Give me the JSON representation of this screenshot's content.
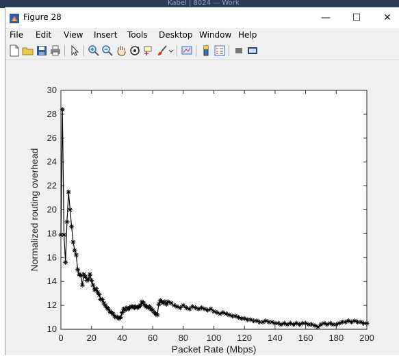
{
  "background": {
    "window_title": "Kabel | 8024 — Work"
  },
  "window": {
    "title": "Figure 28",
    "minimize": "—",
    "maximize": "☐",
    "close": "✕"
  },
  "menu": {
    "items": [
      "File",
      "Edit",
      "View",
      "Insert",
      "Tools",
      "Desktop",
      "Window",
      "Help"
    ]
  },
  "toolbar": {
    "icons": [
      "new-figure-icon",
      "open-file-icon",
      "save-icon",
      "print-icon",
      "select-arrow-icon",
      "zoom-in-icon",
      "zoom-out-icon",
      "pan-hand-icon",
      "rotate-3d-icon",
      "data-cursor-icon",
      "brush-icon",
      "link-plot-icon",
      "colorbar-icon",
      "legend-icon",
      "hide-plot-tools-icon",
      "show-plot-tools-icon"
    ]
  },
  "colors": {
    "line": "#000000",
    "axes_bg": "#ffffff",
    "figure_bg": "#f0f0f0"
  },
  "chart_data": {
    "type": "line",
    "title": "",
    "xlabel": "Packet Rate (Mbps)",
    "ylabel": "Normalized routing overhead",
    "xlim": [
      0,
      200
    ],
    "ylim": [
      10,
      30
    ],
    "xticks": [
      "0",
      "20",
      "40",
      "60",
      "80",
      "100",
      "120",
      "140",
      "160",
      "180",
      "200"
    ],
    "yticks": [
      "10",
      "12",
      "14",
      "16",
      "18",
      "20",
      "22",
      "24",
      "26",
      "28",
      "30"
    ],
    "marker": "*",
    "grid": false,
    "series": [
      {
        "x": [
          0,
          1,
          2,
          3,
          4,
          5,
          6,
          7,
          8,
          9,
          10,
          11,
          12,
          13,
          14,
          15,
          16,
          17,
          18,
          19,
          20,
          21,
          22,
          23,
          24,
          25,
          26,
          27,
          28,
          29,
          30,
          31,
          32,
          33,
          34,
          35,
          36,
          37,
          38,
          39,
          40,
          41,
          42,
          43,
          44,
          45,
          46,
          47,
          48,
          49,
          50,
          51,
          52,
          53,
          54,
          55,
          56,
          57,
          58,
          59,
          60,
          61,
          62,
          63,
          64,
          65,
          66,
          67,
          68,
          69,
          70,
          72,
          74,
          76,
          78,
          80,
          82,
          84,
          86,
          88,
          90,
          92,
          94,
          96,
          98,
          100,
          102,
          104,
          106,
          108,
          110,
          112,
          114,
          116,
          118,
          120,
          122,
          124,
          126,
          128,
          130,
          132,
          134,
          136,
          138,
          140,
          142,
          144,
          146,
          148,
          150,
          152,
          154,
          156,
          158,
          160,
          162,
          164,
          166,
          168,
          170,
          172,
          174,
          176,
          178,
          180,
          182,
          184,
          186,
          188,
          190,
          192,
          194,
          196,
          198,
          200
        ],
        "y": [
          17.9,
          28.4,
          17.9,
          15.6,
          19.0,
          21.5,
          20.0,
          18.6,
          17.3,
          16.6,
          16.2,
          15.0,
          14.6,
          14.5,
          13.7,
          14.6,
          14.4,
          14.1,
          14.2,
          14.6,
          14.1,
          13.7,
          13.3,
          13.4,
          13.1,
          12.9,
          12.5,
          12.5,
          12.2,
          12.0,
          11.8,
          11.7,
          11.5,
          11.4,
          11.3,
          11.1,
          11.0,
          11.0,
          10.9,
          11.0,
          11.4,
          11.7,
          11.6,
          11.8,
          11.7,
          11.8,
          11.9,
          11.9,
          11.8,
          11.9,
          11.8,
          11.9,
          12.0,
          12.3,
          12.2,
          12.0,
          11.9,
          11.8,
          11.9,
          11.7,
          11.6,
          11.4,
          11.3,
          11.2,
          12.1,
          12.4,
          12.3,
          12.2,
          12.3,
          12.1,
          12.3,
          12.2,
          12.0,
          11.9,
          11.8,
          12.0,
          11.8,
          11.7,
          11.9,
          11.8,
          11.7,
          11.8,
          11.7,
          11.6,
          11.7,
          11.5,
          11.4,
          11.3,
          11.4,
          11.3,
          11.2,
          11.1,
          11.1,
          11.0,
          10.9,
          10.9,
          10.8,
          10.8,
          10.7,
          10.7,
          10.6,
          10.6,
          10.7,
          10.6,
          10.6,
          10.5,
          10.5,
          10.4,
          10.5,
          10.4,
          10.5,
          10.4,
          10.5,
          10.4,
          10.5,
          10.5,
          10.4,
          10.4,
          10.3,
          10.2,
          10.4,
          10.5,
          10.4,
          10.5,
          10.4,
          10.4,
          10.5,
          10.6,
          10.6,
          10.7,
          10.6,
          10.7,
          10.6,
          10.6,
          10.5,
          10.5
        ]
      }
    ]
  }
}
